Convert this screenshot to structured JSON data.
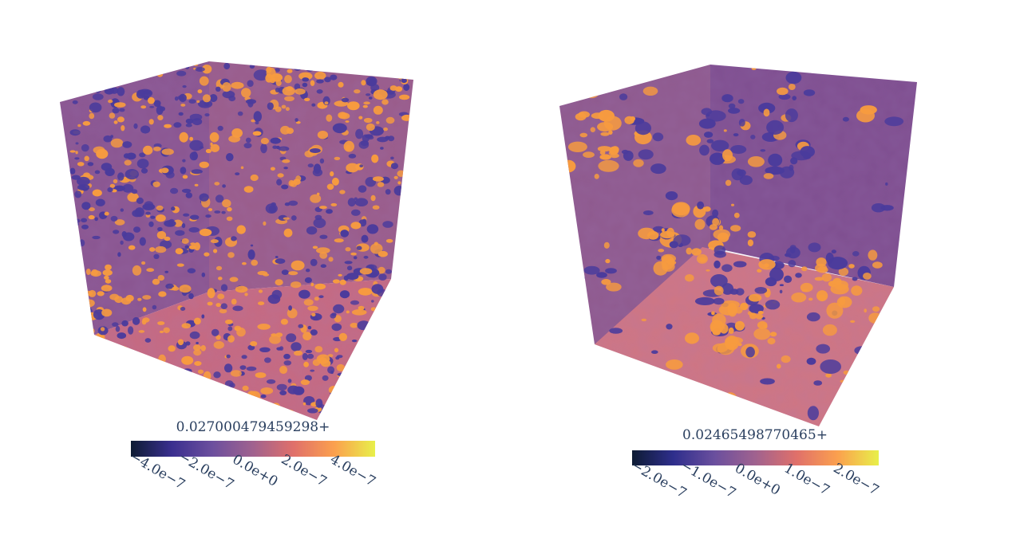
{
  "chart_data": [
    {
      "type": "heatmap",
      "subtype": "3d-isosurface-volume",
      "colorscale": [
        "#0d1b33",
        "#3a2f8f",
        "#6c4f9e",
        "#a0628f",
        "#e0706a",
        "#fba04e",
        "#e8f04a"
      ],
      "colorbar": {
        "title": "0.027000479459298+",
        "range": [
          -5e-07,
          5e-07
        ],
        "tickvals": [
          -4e-07,
          -2e-07,
          0,
          2e-07,
          4e-07
        ],
        "ticktext": [
          "−4.0e−7",
          "−2.0e−7",
          "0.0e+0",
          "2.0e−7",
          "4.0e−7"
        ]
      },
      "isosurface_colors": {
        "negative": "#4a3b9c",
        "positive": "#f79b3f"
      },
      "wall_colors": [
        "#7a4a8c",
        "#b9607f",
        "#e3826a"
      ],
      "blob_density": "dense"
    },
    {
      "type": "heatmap",
      "subtype": "3d-isosurface-volume",
      "colorscale": [
        "#0d1b33",
        "#2e2e8c",
        "#6a4f9e",
        "#a0628f",
        "#e0706a",
        "#fba04e",
        "#e8f04a"
      ],
      "colorbar": {
        "title": "0.02465498770465+",
        "range": [
          -2.5e-07,
          2.5e-07
        ],
        "tickvals": [
          -2e-07,
          -1e-07,
          0,
          1e-07,
          2e-07
        ],
        "ticktext": [
          "−2.0e−7",
          "−1.0e−7",
          "0.0e+0",
          "1.0e−7",
          "2.0e−7"
        ]
      },
      "isosurface_colors": {
        "negative": "#4a3b9c",
        "positive": "#f79b3f"
      },
      "wall_colors": [
        "#7a4a8c",
        "#b9607f",
        "#e3826a"
      ],
      "blob_density": "sparse-clustered"
    }
  ]
}
